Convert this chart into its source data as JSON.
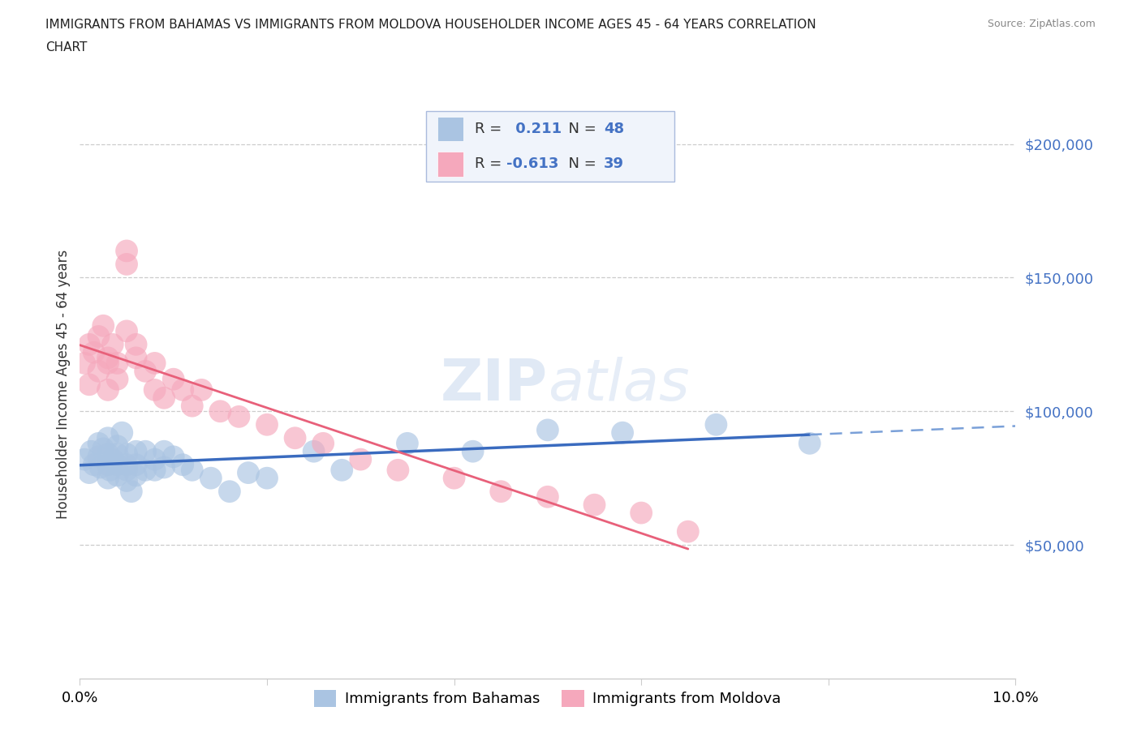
{
  "title_line1": "IMMIGRANTS FROM BAHAMAS VS IMMIGRANTS FROM MOLDOVA HOUSEHOLDER INCOME AGES 45 - 64 YEARS CORRELATION",
  "title_line2": "CHART",
  "source": "Source: ZipAtlas.com",
  "ylabel": "Householder Income Ages 45 - 64 years",
  "xlim": [
    0.0,
    0.1
  ],
  "ylim": [
    0,
    220000
  ],
  "yticks": [
    0,
    50000,
    100000,
    150000,
    200000
  ],
  "ytick_labels": [
    "",
    "$50,000",
    "$100,000",
    "$150,000",
    "$200,000"
  ],
  "xticks": [
    0.0,
    0.02,
    0.04,
    0.06,
    0.08,
    0.1
  ],
  "xtick_labels": [
    "0.0%",
    "",
    "",
    "",
    "",
    "10.0%"
  ],
  "bahamas_R": 0.211,
  "bahamas_N": 48,
  "moldova_R": -0.613,
  "moldova_N": 39,
  "bahamas_color": "#aac4e2",
  "moldova_color": "#f5a8bc",
  "bahamas_line_color": "#3a6bbf",
  "bahamas_dash_color": "#7aa0d8",
  "moldova_line_color": "#e8607a",
  "watermark_zip": "ZIP",
  "watermark_atlas": "atlas",
  "legend_box_color": "#e8f0f8",
  "bahamas_x": [
    0.0005,
    0.001,
    0.0012,
    0.0015,
    0.002,
    0.002,
    0.0022,
    0.0025,
    0.003,
    0.003,
    0.003,
    0.003,
    0.0032,
    0.0035,
    0.004,
    0.004,
    0.004,
    0.004,
    0.0045,
    0.005,
    0.005,
    0.005,
    0.005,
    0.0055,
    0.006,
    0.006,
    0.006,
    0.007,
    0.007,
    0.008,
    0.008,
    0.009,
    0.009,
    0.01,
    0.011,
    0.012,
    0.014,
    0.016,
    0.018,
    0.02,
    0.025,
    0.028,
    0.035,
    0.042,
    0.05,
    0.058,
    0.068,
    0.078
  ],
  "bahamas_y": [
    82000,
    77000,
    85000,
    80000,
    83000,
    88000,
    79000,
    86000,
    80000,
    84000,
    90000,
    75000,
    78000,
    82000,
    76000,
    80000,
    84000,
    87000,
    92000,
    74000,
    80000,
    84000,
    78000,
    70000,
    76000,
    85000,
    80000,
    78000,
    85000,
    78000,
    82000,
    79000,
    85000,
    83000,
    80000,
    78000,
    75000,
    70000,
    77000,
    75000,
    85000,
    78000,
    88000,
    85000,
    93000,
    92000,
    95000,
    88000
  ],
  "moldova_x": [
    0.0005,
    0.001,
    0.001,
    0.0015,
    0.002,
    0.002,
    0.0025,
    0.003,
    0.003,
    0.003,
    0.0035,
    0.004,
    0.004,
    0.005,
    0.005,
    0.005,
    0.006,
    0.006,
    0.007,
    0.008,
    0.008,
    0.009,
    0.01,
    0.011,
    0.012,
    0.013,
    0.015,
    0.017,
    0.02,
    0.023,
    0.026,
    0.03,
    0.034,
    0.04,
    0.045,
    0.05,
    0.055,
    0.06,
    0.065
  ],
  "moldova_y": [
    118000,
    110000,
    125000,
    122000,
    128000,
    115000,
    132000,
    120000,
    118000,
    108000,
    125000,
    112000,
    118000,
    155000,
    160000,
    130000,
    120000,
    125000,
    115000,
    108000,
    118000,
    105000,
    112000,
    108000,
    102000,
    108000,
    100000,
    98000,
    95000,
    90000,
    88000,
    82000,
    78000,
    75000,
    70000,
    68000,
    65000,
    62000,
    55000
  ]
}
